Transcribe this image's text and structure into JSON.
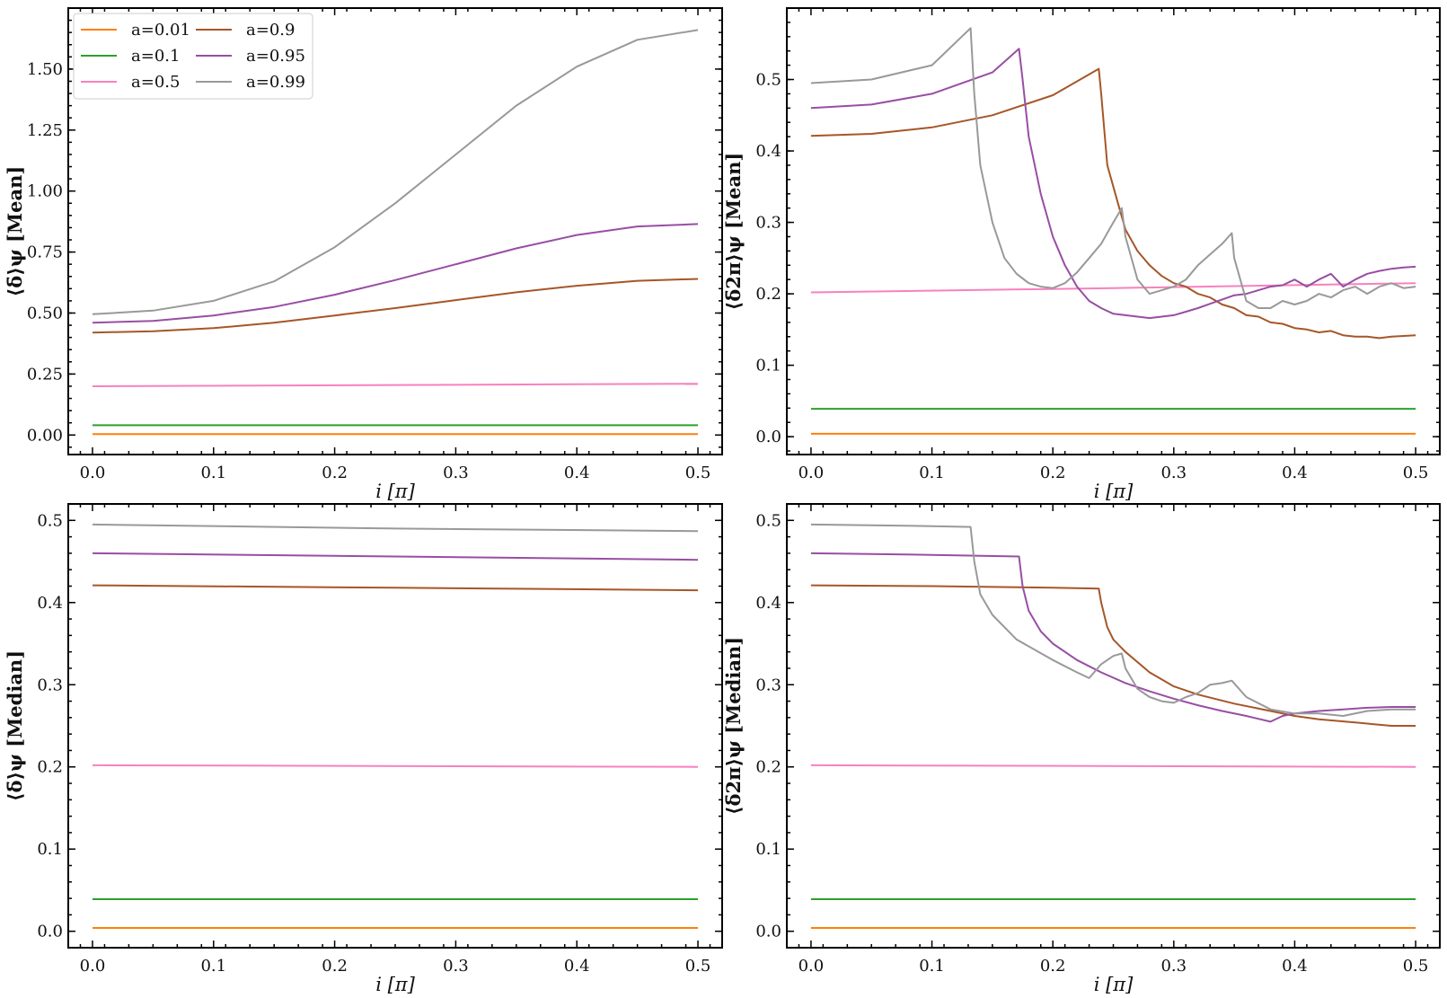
{
  "colors": {
    "a0.01": "#ff7f0e",
    "a0.1": "#2ca02c",
    "a0.5": "#f781bf",
    "a0.9": "#a65628",
    "a0.95": "#984ea3",
    "a0.99": "#999999"
  },
  "legend": {
    "entries": [
      {
        "label": "a=0.01",
        "key": "a0.01"
      },
      {
        "label": "a=0.1",
        "key": "a0.1"
      },
      {
        "label": "a=0.5",
        "key": "a0.5"
      },
      {
        "label": "a=0.9",
        "key": "a0.9"
      },
      {
        "label": "a=0.95",
        "key": "a0.95"
      },
      {
        "label": "a=0.99",
        "key": "a0.99"
      }
    ],
    "placement": "top-left",
    "columns": 2
  },
  "chart_data": [
    {
      "type": "line",
      "panel": "top-left",
      "xlabel": "i [π]",
      "ylabel": "⟨δ̄⟩ψ [Mean]",
      "xlim": [
        -0.02,
        0.52
      ],
      "ylim": [
        -0.08,
        1.75
      ],
      "xticks": [
        "0.0",
        "0.1",
        "0.2",
        "0.3",
        "0.4",
        "0.5"
      ],
      "yticks": [
        "0.00",
        "0.25",
        "0.50",
        "0.75",
        "1.00",
        "1.25",
        "1.50"
      ],
      "ytick_values": [
        0,
        0.25,
        0.5,
        0.75,
        1.0,
        1.25,
        1.5
      ],
      "series": [
        {
          "name": "a=0.01",
          "key": "a0.01",
          "x": [
            0,
            0.5
          ],
          "y": [
            0.004,
            0.004
          ]
        },
        {
          "name": "a=0.1",
          "key": "a0.1",
          "x": [
            0,
            0.5
          ],
          "y": [
            0.04,
            0.04
          ]
        },
        {
          "name": "a=0.5",
          "key": "a0.5",
          "x": [
            0,
            0.25,
            0.5
          ],
          "y": [
            0.2,
            0.205,
            0.21
          ]
        },
        {
          "name": "a=0.9",
          "key": "a0.9",
          "x": [
            0,
            0.05,
            0.1,
            0.15,
            0.2,
            0.25,
            0.3,
            0.35,
            0.4,
            0.45,
            0.5
          ],
          "y": [
            0.42,
            0.425,
            0.438,
            0.46,
            0.49,
            0.52,
            0.553,
            0.585,
            0.612,
            0.632,
            0.64
          ]
        },
        {
          "name": "a=0.95",
          "key": "a0.95",
          "x": [
            0,
            0.05,
            0.1,
            0.15,
            0.2,
            0.25,
            0.3,
            0.35,
            0.4,
            0.45,
            0.5
          ],
          "y": [
            0.46,
            0.468,
            0.49,
            0.525,
            0.575,
            0.635,
            0.7,
            0.765,
            0.82,
            0.855,
            0.865
          ]
        },
        {
          "name": "a=0.99",
          "key": "a0.99",
          "x": [
            0,
            0.05,
            0.1,
            0.15,
            0.2,
            0.25,
            0.3,
            0.35,
            0.4,
            0.45,
            0.5
          ],
          "y": [
            0.495,
            0.51,
            0.55,
            0.63,
            0.77,
            0.95,
            1.15,
            1.35,
            1.51,
            1.62,
            1.66
          ]
        }
      ]
    },
    {
      "type": "line",
      "panel": "top-right",
      "xlabel": "i [π]",
      "ylabel": "⟨δ̄2π⟩ψ [Mean]",
      "xlim": [
        -0.02,
        0.52
      ],
      "ylim": [
        -0.025,
        0.6
      ],
      "xticks": [
        "0.0",
        "0.1",
        "0.2",
        "0.3",
        "0.4",
        "0.5"
      ],
      "yticks": [
        "0.0",
        "0.1",
        "0.2",
        "0.3",
        "0.4",
        "0.5"
      ],
      "ytick_values": [
        0,
        0.1,
        0.2,
        0.3,
        0.4,
        0.5
      ],
      "series": [
        {
          "name": "a=0.01",
          "key": "a0.01",
          "x": [
            0,
            0.5
          ],
          "y": [
            0.004,
            0.004
          ]
        },
        {
          "name": "a=0.1",
          "key": "a0.1",
          "x": [
            0,
            0.5
          ],
          "y": [
            0.039,
            0.039
          ]
        },
        {
          "name": "a=0.5",
          "key": "a0.5",
          "x": [
            0,
            0.25,
            0.5
          ],
          "y": [
            0.202,
            0.208,
            0.215
          ]
        },
        {
          "name": "a=0.9",
          "key": "a0.9",
          "x": [
            0,
            0.05,
            0.1,
            0.15,
            0.2,
            0.238,
            0.24,
            0.245,
            0.25,
            0.255,
            0.26,
            0.27,
            0.28,
            0.29,
            0.3,
            0.31,
            0.32,
            0.33,
            0.34,
            0.35,
            0.36,
            0.37,
            0.38,
            0.39,
            0.4,
            0.41,
            0.42,
            0.43,
            0.44,
            0.45,
            0.46,
            0.47,
            0.48,
            0.49,
            0.5
          ],
          "y": [
            0.421,
            0.424,
            0.433,
            0.45,
            0.478,
            0.515,
            0.48,
            0.38,
            0.35,
            0.32,
            0.29,
            0.26,
            0.24,
            0.225,
            0.215,
            0.21,
            0.2,
            0.195,
            0.185,
            0.18,
            0.17,
            0.168,
            0.16,
            0.158,
            0.152,
            0.15,
            0.146,
            0.148,
            0.142,
            0.14,
            0.14,
            0.138,
            0.14,
            0.141,
            0.142
          ]
        },
        {
          "name": "a=0.95",
          "key": "a0.95",
          "x": [
            0,
            0.05,
            0.1,
            0.15,
            0.172,
            0.175,
            0.18,
            0.19,
            0.2,
            0.21,
            0.22,
            0.23,
            0.24,
            0.25,
            0.26,
            0.27,
            0.28,
            0.29,
            0.3,
            0.31,
            0.32,
            0.33,
            0.34,
            0.35,
            0.36,
            0.37,
            0.38,
            0.39,
            0.4,
            0.41,
            0.42,
            0.43,
            0.44,
            0.45,
            0.46,
            0.47,
            0.48,
            0.49,
            0.5
          ],
          "y": [
            0.46,
            0.465,
            0.48,
            0.51,
            0.543,
            0.5,
            0.42,
            0.34,
            0.28,
            0.24,
            0.21,
            0.19,
            0.18,
            0.172,
            0.17,
            0.168,
            0.166,
            0.168,
            0.17,
            0.175,
            0.18,
            0.186,
            0.192,
            0.198,
            0.2,
            0.205,
            0.21,
            0.212,
            0.22,
            0.21,
            0.22,
            0.228,
            0.21,
            0.22,
            0.228,
            0.232,
            0.235,
            0.237,
            0.238
          ]
        },
        {
          "name": "a=0.99",
          "key": "a0.99",
          "x": [
            0,
            0.05,
            0.1,
            0.132,
            0.135,
            0.14,
            0.15,
            0.16,
            0.17,
            0.18,
            0.19,
            0.2,
            0.21,
            0.22,
            0.23,
            0.24,
            0.25,
            0.257,
            0.26,
            0.27,
            0.28,
            0.29,
            0.3,
            0.31,
            0.32,
            0.33,
            0.34,
            0.348,
            0.35,
            0.36,
            0.37,
            0.38,
            0.39,
            0.4,
            0.41,
            0.42,
            0.43,
            0.44,
            0.45,
            0.46,
            0.47,
            0.48,
            0.49,
            0.5
          ],
          "y": [
            0.495,
            0.5,
            0.52,
            0.572,
            0.48,
            0.38,
            0.3,
            0.25,
            0.228,
            0.215,
            0.21,
            0.208,
            0.215,
            0.23,
            0.25,
            0.27,
            0.3,
            0.32,
            0.28,
            0.22,
            0.2,
            0.205,
            0.21,
            0.22,
            0.24,
            0.255,
            0.27,
            0.285,
            0.25,
            0.19,
            0.18,
            0.18,
            0.19,
            0.185,
            0.19,
            0.2,
            0.195,
            0.205,
            0.21,
            0.2,
            0.21,
            0.215,
            0.208,
            0.21
          ]
        }
      ]
    },
    {
      "type": "line",
      "panel": "bottom-left",
      "xlabel": "i [π]",
      "ylabel": "⟨δ̄⟩ψ [Median]",
      "xlim": [
        -0.02,
        0.52
      ],
      "ylim": [
        -0.02,
        0.52
      ],
      "xticks": [
        "0.0",
        "0.1",
        "0.2",
        "0.3",
        "0.4",
        "0.5"
      ],
      "yticks": [
        "0.0",
        "0.1",
        "0.2",
        "0.3",
        "0.4",
        "0.5"
      ],
      "ytick_values": [
        0,
        0.1,
        0.2,
        0.3,
        0.4,
        0.5
      ],
      "series": [
        {
          "name": "a=0.01",
          "key": "a0.01",
          "x": [
            0,
            0.5
          ],
          "y": [
            0.004,
            0.004
          ]
        },
        {
          "name": "a=0.1",
          "key": "a0.1",
          "x": [
            0,
            0.5
          ],
          "y": [
            0.039,
            0.039
          ]
        },
        {
          "name": "a=0.5",
          "key": "a0.5",
          "x": [
            0,
            0.5
          ],
          "y": [
            0.202,
            0.2
          ]
        },
        {
          "name": "a=0.9",
          "key": "a0.9",
          "x": [
            0,
            0.25,
            0.5
          ],
          "y": [
            0.421,
            0.418,
            0.415
          ]
        },
        {
          "name": "a=0.95",
          "key": "a0.95",
          "x": [
            0,
            0.25,
            0.5
          ],
          "y": [
            0.46,
            0.456,
            0.452
          ]
        },
        {
          "name": "a=0.99",
          "key": "a0.99",
          "x": [
            0,
            0.25,
            0.5
          ],
          "y": [
            0.495,
            0.49,
            0.487
          ]
        }
      ]
    },
    {
      "type": "line",
      "panel": "bottom-right",
      "xlabel": "i [π]",
      "ylabel": "⟨δ̄2π⟩ψ [Median]",
      "xlim": [
        -0.02,
        0.52
      ],
      "ylim": [
        -0.02,
        0.52
      ],
      "xticks": [
        "0.0",
        "0.1",
        "0.2",
        "0.3",
        "0.4",
        "0.5"
      ],
      "yticks": [
        "0.0",
        "0.1",
        "0.2",
        "0.3",
        "0.4",
        "0.5"
      ],
      "ytick_values": [
        0,
        0.1,
        0.2,
        0.3,
        0.4,
        0.5
      ],
      "series": [
        {
          "name": "a=0.01",
          "key": "a0.01",
          "x": [
            0,
            0.5
          ],
          "y": [
            0.004,
            0.004
          ]
        },
        {
          "name": "a=0.1",
          "key": "a0.1",
          "x": [
            0,
            0.5
          ],
          "y": [
            0.039,
            0.039
          ]
        },
        {
          "name": "a=0.5",
          "key": "a0.5",
          "x": [
            0,
            0.5
          ],
          "y": [
            0.202,
            0.2
          ]
        },
        {
          "name": "a=0.9",
          "key": "a0.9",
          "x": [
            0,
            0.1,
            0.2,
            0.238,
            0.24,
            0.245,
            0.25,
            0.26,
            0.28,
            0.3,
            0.32,
            0.35,
            0.38,
            0.4,
            0.42,
            0.45,
            0.48,
            0.5
          ],
          "y": [
            0.421,
            0.42,
            0.418,
            0.417,
            0.4,
            0.37,
            0.355,
            0.34,
            0.315,
            0.298,
            0.288,
            0.277,
            0.268,
            0.262,
            0.258,
            0.254,
            0.25,
            0.25
          ]
        },
        {
          "name": "a=0.95",
          "key": "a0.95",
          "x": [
            0,
            0.1,
            0.172,
            0.175,
            0.18,
            0.19,
            0.2,
            0.22,
            0.24,
            0.26,
            0.28,
            0.3,
            0.32,
            0.34,
            0.36,
            0.38,
            0.39,
            0.4,
            0.42,
            0.44,
            0.46,
            0.48,
            0.5
          ],
          "y": [
            0.46,
            0.458,
            0.456,
            0.42,
            0.39,
            0.365,
            0.35,
            0.33,
            0.315,
            0.302,
            0.292,
            0.283,
            0.275,
            0.268,
            0.262,
            0.255,
            0.262,
            0.265,
            0.268,
            0.27,
            0.272,
            0.273,
            0.273
          ]
        },
        {
          "name": "a=0.99",
          "key": "a0.99",
          "x": [
            0,
            0.1,
            0.132,
            0.135,
            0.14,
            0.15,
            0.17,
            0.2,
            0.22,
            0.23,
            0.24,
            0.25,
            0.257,
            0.26,
            0.27,
            0.28,
            0.29,
            0.3,
            0.31,
            0.32,
            0.33,
            0.34,
            0.348,
            0.36,
            0.38,
            0.4,
            0.42,
            0.44,
            0.46,
            0.48,
            0.5
          ],
          "y": [
            0.495,
            0.493,
            0.492,
            0.45,
            0.41,
            0.385,
            0.355,
            0.33,
            0.315,
            0.308,
            0.325,
            0.335,
            0.338,
            0.32,
            0.295,
            0.285,
            0.28,
            0.278,
            0.285,
            0.29,
            0.3,
            0.302,
            0.305,
            0.285,
            0.27,
            0.265,
            0.265,
            0.262,
            0.268,
            0.27,
            0.27
          ]
        }
      ]
    }
  ]
}
